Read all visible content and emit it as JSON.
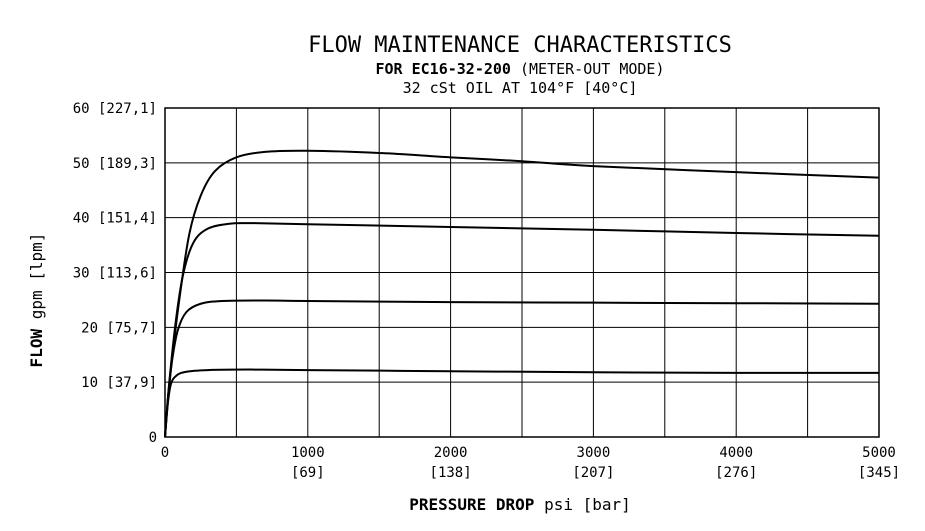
{
  "chart_data": {
    "type": "line",
    "title": "FLOW MAINTENANCE CHARACTERISTICS",
    "subtitle_bold": "FOR EC16-32-200",
    "subtitle_rest": "(METER-OUT MODE)",
    "condition": "32 cSt OIL AT 104°F [40°C]",
    "xlabel_bold": "PRESSURE DROP",
    "xlabel_rest": "psi [bar]",
    "ylabel_bold": "FLOW",
    "ylabel_rest": "gpm [lpm]",
    "xlim": [
      0,
      5000
    ],
    "ylim": [
      0,
      60
    ],
    "grid": true,
    "x_ticks": [
      {
        "value": 0,
        "label": "0",
        "sublabel": ""
      },
      {
        "value": 1000,
        "label": "1000",
        "sublabel": "[69]"
      },
      {
        "value": 2000,
        "label": "2000",
        "sublabel": "[138]"
      },
      {
        "value": 3000,
        "label": "3000",
        "sublabel": "[207]"
      },
      {
        "value": 4000,
        "label": "4000",
        "sublabel": "[276]"
      },
      {
        "value": 5000,
        "label": "5000",
        "sublabel": "[345]"
      }
    ],
    "y_ticks": [
      {
        "value": 0,
        "label": "0"
      },
      {
        "value": 10,
        "label": "10 [37,9]"
      },
      {
        "value": 20,
        "label": "20 [75,7]"
      },
      {
        "value": 30,
        "label": "30 [113,6]"
      },
      {
        "value": 40,
        "label": "40 [151,4]"
      },
      {
        "value": 50,
        "label": "50 [189,3]"
      },
      {
        "value": 60,
        "label": "60 [227,1]"
      }
    ],
    "series": [
      {
        "name": "curve-1",
        "points": [
          [
            0,
            0
          ],
          [
            15,
            5
          ],
          [
            40,
            9.5
          ],
          [
            80,
            11.2
          ],
          [
            150,
            11.9
          ],
          [
            300,
            12.2
          ],
          [
            600,
            12.3
          ],
          [
            1000,
            12.2
          ],
          [
            2000,
            12.0
          ],
          [
            3000,
            11.8
          ],
          [
            4000,
            11.7
          ],
          [
            5000,
            11.7
          ]
        ]
      },
      {
        "name": "curve-2",
        "points": [
          [
            0,
            0
          ],
          [
            20,
            7
          ],
          [
            50,
            14
          ],
          [
            90,
            19.5
          ],
          [
            150,
            22.8
          ],
          [
            250,
            24.3
          ],
          [
            400,
            24.8
          ],
          [
            700,
            24.9
          ],
          [
            1000,
            24.8
          ],
          [
            2000,
            24.6
          ],
          [
            3000,
            24.5
          ],
          [
            4000,
            24.4
          ],
          [
            5000,
            24.3
          ]
        ]
      },
      {
        "name": "curve-3",
        "points": [
          [
            0,
            0
          ],
          [
            30,
            10
          ],
          [
            80,
            22
          ],
          [
            130,
            30
          ],
          [
            200,
            35.5
          ],
          [
            300,
            38
          ],
          [
            450,
            38.9
          ],
          [
            600,
            39.0
          ],
          [
            1000,
            38.8
          ],
          [
            2000,
            38.3
          ],
          [
            3000,
            37.8
          ],
          [
            4000,
            37.2
          ],
          [
            5000,
            36.7
          ]
        ]
      },
      {
        "name": "curve-4",
        "points": [
          [
            0,
            0
          ],
          [
            40,
            12
          ],
          [
            100,
            25
          ],
          [
            170,
            37
          ],
          [
            250,
            44
          ],
          [
            350,
            48.5
          ],
          [
            500,
            51
          ],
          [
            700,
            52
          ],
          [
            1000,
            52.2
          ],
          [
            1500,
            51.8
          ],
          [
            2000,
            51
          ],
          [
            2500,
            50.3
          ],
          [
            3000,
            49.4
          ],
          [
            4000,
            48.3
          ],
          [
            5000,
            47.3
          ]
        ]
      }
    ]
  }
}
